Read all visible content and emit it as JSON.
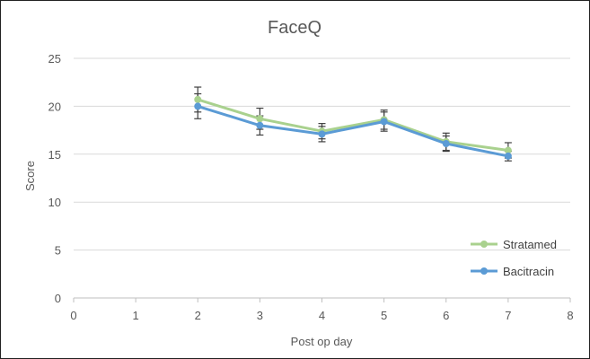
{
  "chart_data": {
    "type": "line",
    "title": "FaceQ",
    "xlabel": "Post op day",
    "ylabel": "Score",
    "xlim": [
      0,
      8
    ],
    "ylim": [
      0,
      25
    ],
    "x_ticks": [
      0,
      1,
      2,
      3,
      4,
      5,
      6,
      7,
      8
    ],
    "y_ticks": [
      0,
      5,
      10,
      15,
      20,
      25
    ],
    "grid": "horizontal",
    "legend_position": "bottom-right",
    "series": [
      {
        "name": "Stratamed",
        "color": "#a9d18e",
        "x": [
          2,
          3,
          4,
          5,
          6,
          7
        ],
        "y": [
          20.7,
          18.7,
          17.4,
          18.6,
          16.3,
          15.4
        ],
        "error": [
          1.3,
          1.1,
          0.8,
          1.0,
          0.9,
          0.8
        ]
      },
      {
        "name": "Bacitracin",
        "color": "#5b9bd5",
        "x": [
          2,
          3,
          4,
          5,
          6,
          7
        ],
        "y": [
          20.0,
          18.0,
          17.1,
          18.4,
          16.1,
          14.8
        ],
        "error": [
          1.3,
          1.0,
          0.8,
          1.0,
          0.8,
          0.5
        ]
      }
    ]
  }
}
